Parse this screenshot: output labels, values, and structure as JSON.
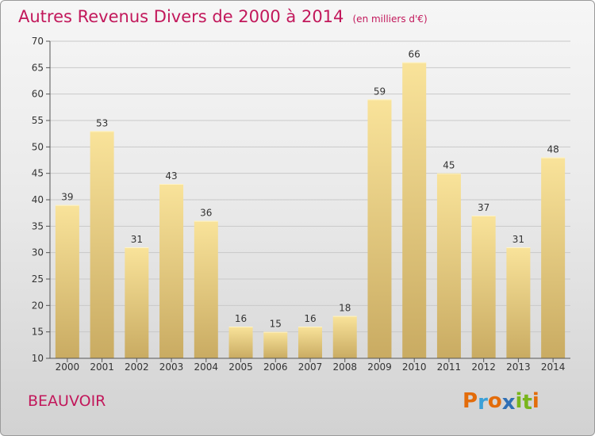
{
  "title": "Autres Revenus Divers de 2000 à 2014",
  "unit": "(en milliers d'€)",
  "commune": "BEAUVOIR",
  "logo_text": "Proxiti",
  "logo_colors": [
    "#e36c0a",
    "#3aa0d8",
    "#e36c0a",
    "#2f6fb5",
    "#79b51c",
    "#79b51c",
    "#e36c0a"
  ],
  "colors": {
    "title": "#c2185b",
    "bar_top": "#f9e39a",
    "bar_bottom": "#c9ab62"
  },
  "chart_data": {
    "type": "bar",
    "categories": [
      "2000",
      "2001",
      "2002",
      "2003",
      "2004",
      "2005",
      "2006",
      "2007",
      "2008",
      "2009",
      "2010",
      "2011",
      "2012",
      "2013",
      "2014"
    ],
    "values": [
      39,
      53,
      31,
      43,
      36,
      16,
      15,
      16,
      18,
      59,
      66,
      45,
      37,
      31,
      48
    ],
    "ylim": [
      10,
      70
    ],
    "yticks": [
      10,
      15,
      20,
      25,
      30,
      35,
      40,
      45,
      50,
      55,
      60,
      65,
      70
    ],
    "grid": true
  }
}
